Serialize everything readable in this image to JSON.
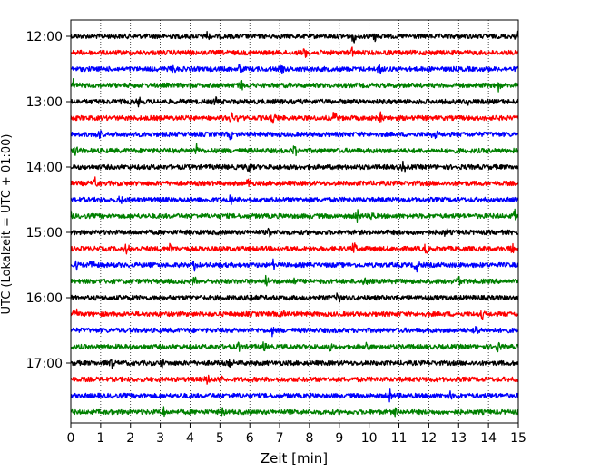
{
  "chart_data": {
    "type": "line",
    "title": "",
    "xlabel": "Zeit  [min]",
    "ylabel": "UTC (Lokalzeit = UTC + 01:00)",
    "xlim": [
      0,
      15
    ],
    "x_ticks": [
      0,
      1,
      2,
      3,
      4,
      5,
      6,
      7,
      8,
      9,
      10,
      11,
      12,
      13,
      14,
      15
    ],
    "y_ticks": [
      {
        "row": 0,
        "label": "12:00"
      },
      {
        "row": 4,
        "label": "13:00"
      },
      {
        "row": 8,
        "label": "14:00"
      },
      {
        "row": 12,
        "label": "15:00"
      },
      {
        "row": 16,
        "label": "16:00"
      },
      {
        "row": 20,
        "label": "17:00"
      }
    ],
    "grid": "vertical dotted lines at each minute",
    "row_colors": [
      "#000000",
      "#ff0000",
      "#0000ff",
      "#008000"
    ],
    "rows": [
      {
        "start": "12:00"
      },
      {
        "start": "12:15"
      },
      {
        "start": "12:30"
      },
      {
        "start": "12:45"
      },
      {
        "start": "13:00"
      },
      {
        "start": "13:15"
      },
      {
        "start": "13:30"
      },
      {
        "start": "13:45"
      },
      {
        "start": "14:00"
      },
      {
        "start": "14:15"
      },
      {
        "start": "14:30"
      },
      {
        "start": "14:45"
      },
      {
        "start": "15:00"
      },
      {
        "start": "15:15"
      },
      {
        "start": "15:30"
      },
      {
        "start": "15:45"
      },
      {
        "start": "16:00"
      },
      {
        "start": "16:15"
      },
      {
        "start": "16:30"
      },
      {
        "start": "16:45"
      },
      {
        "start": "17:00"
      },
      {
        "start": "17:15"
      },
      {
        "start": "17:30"
      },
      {
        "start": "17:45"
      }
    ]
  }
}
